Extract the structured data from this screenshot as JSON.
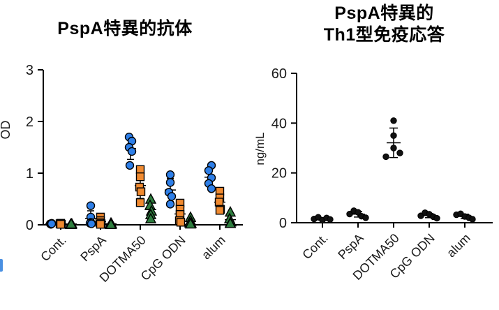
{
  "page": {
    "background": "#ffffff",
    "edge_artifact_color": "#4a90e2"
  },
  "chart_data": [
    {
      "type": "scatter",
      "title": "PspA特異的抗体",
      "ylabel": "OD",
      "xlabel": "",
      "ylim": [
        0,
        3
      ],
      "yticks": [
        0,
        1,
        2,
        3
      ],
      "grid": false,
      "legend": null,
      "error_bars": "mean±sd, black whiskers with mean line per marker series",
      "categories": [
        "Cont.",
        "PspA",
        "DOTMA50",
        "CpG ODN",
        "alum"
      ],
      "series": [
        {
          "name": "blue-circles",
          "marker": "circle",
          "color": "#2e7fe8",
          "groups": [
            [
              [
                -1,
                0.02
              ],
              [
                1,
                0.03
              ],
              [
                0,
                0.01
              ],
              [
                0,
                0.02
              ],
              [
                1,
                0.02
              ]
            ],
            [
              [
                0,
                0.37
              ],
              [
                0,
                0.15
              ],
              [
                0,
                0.05
              ],
              [
                -1,
                0.03
              ],
              [
                1,
                0.02
              ]
            ],
            [
              [
                -2,
                1.7
              ],
              [
                2,
                1.62
              ],
              [
                -2,
                1.5
              ],
              [
                2,
                1.42
              ],
              [
                -1,
                1.15
              ]
            ],
            [
              [
                0,
                0.97
              ],
              [
                0,
                0.82
              ],
              [
                -2,
                0.63
              ],
              [
                2,
                0.55
              ],
              [
                0,
                0.4
              ]
            ],
            [
              [
                2,
                1.15
              ],
              [
                -2,
                1.05
              ],
              [
                2,
                0.91
              ],
              [
                -2,
                0.8
              ],
              [
                2,
                0.7
              ]
            ]
          ]
        },
        {
          "name": "orange-squares",
          "marker": "square",
          "color": "#f08a30",
          "groups": [
            [
              [
                0,
                0.03
              ],
              [
                0,
                0.02
              ],
              [
                1,
                0.01
              ],
              [
                -1,
                0.02
              ],
              [
                0,
                0.01
              ]
            ],
            [
              [
                0,
                0.15
              ],
              [
                0,
                0.08
              ],
              [
                -1,
                0.04
              ],
              [
                1,
                0.02
              ],
              [
                0,
                0.01
              ]
            ],
            [
              [
                0,
                1.07
              ],
              [
                0,
                0.93
              ],
              [
                -1,
                0.73
              ],
              [
                1,
                0.64
              ],
              [
                0,
                0.43
              ]
            ],
            [
              [
                0,
                0.42
              ],
              [
                0,
                0.3
              ],
              [
                0,
                0.2
              ],
              [
                -1,
                0.08
              ],
              [
                1,
                0.05
              ]
            ],
            [
              [
                0,
                0.65
              ],
              [
                0,
                0.52
              ],
              [
                -1,
                0.44
              ],
              [
                1,
                0.3
              ],
              [
                0,
                0.28
              ]
            ]
          ]
        },
        {
          "name": "green-triangles",
          "marker": "triangle",
          "color": "#2e7d3e",
          "groups": [
            [
              [
                0,
                0.02
              ],
              [
                0,
                0.01
              ],
              [
                1,
                0.02
              ],
              [
                -1,
                0.01
              ],
              [
                0,
                0.02
              ]
            ],
            [
              [
                0,
                0.04
              ],
              [
                0,
                0.02
              ],
              [
                1,
                0.02
              ],
              [
                -1,
                0.01
              ],
              [
                0,
                0.01
              ]
            ],
            [
              [
                0,
                0.5
              ],
              [
                -1,
                0.38
              ],
              [
                1,
                0.27
              ],
              [
                0,
                0.2
              ],
              [
                0,
                0.12
              ]
            ],
            [
              [
                0,
                0.15
              ],
              [
                0,
                0.08
              ],
              [
                -1,
                0.04
              ],
              [
                1,
                0.03
              ],
              [
                0,
                0.02
              ]
            ],
            [
              [
                0,
                0.25
              ],
              [
                -1,
                0.12
              ],
              [
                1,
                0.06
              ],
              [
                0,
                0.04
              ],
              [
                0,
                0.03
              ]
            ]
          ]
        }
      ]
    },
    {
      "type": "scatter",
      "title": "PspA特異的 Th1型免疫応答",
      "title_lines": [
        "PspA特異的",
        "Th1型免疫応答"
      ],
      "ylabel": "ng/mL",
      "xlabel": "",
      "ylim": [
        0,
        60
      ],
      "yticks": [
        0,
        20,
        40,
        60
      ],
      "grid": false,
      "legend": null,
      "error_bars": "mean±sd, black whiskers with mean line",
      "categories": [
        "Cont.",
        "PspA",
        "DOTMA50",
        "CpG ODN",
        "alum"
      ],
      "series": [
        {
          "name": "black-dots",
          "marker": "dot",
          "color": "#111111",
          "groups": [
            [
              [
                -12,
                1.5
              ],
              [
                -6,
                2.2
              ],
              [
                0,
                1.0
              ],
              [
                6,
                1.9
              ],
              [
                11,
                1.3
              ]
            ],
            [
              [
                -12,
                3.5
              ],
              [
                -6,
                4.8
              ],
              [
                0,
                4.2
              ],
              [
                5,
                2.6
              ],
              [
                11,
                2.0
              ]
            ],
            [
              [
                0,
                41.0
              ],
              [
                0,
                35.0
              ],
              [
                0,
                30.0
              ],
              [
                -11,
                26.5
              ],
              [
                9,
                28.0
              ]
            ],
            [
              [
                -12,
                2.8
              ],
              [
                -6,
                4.0
              ],
              [
                0,
                3.4
              ],
              [
                6,
                2.4
              ],
              [
                11,
                1.8
              ]
            ],
            [
              [
                -12,
                3.2
              ],
              [
                -6,
                3.6
              ],
              [
                0,
                2.5
              ],
              [
                6,
                2.0
              ],
              [
                11,
                1.4
              ]
            ]
          ]
        }
      ]
    }
  ]
}
